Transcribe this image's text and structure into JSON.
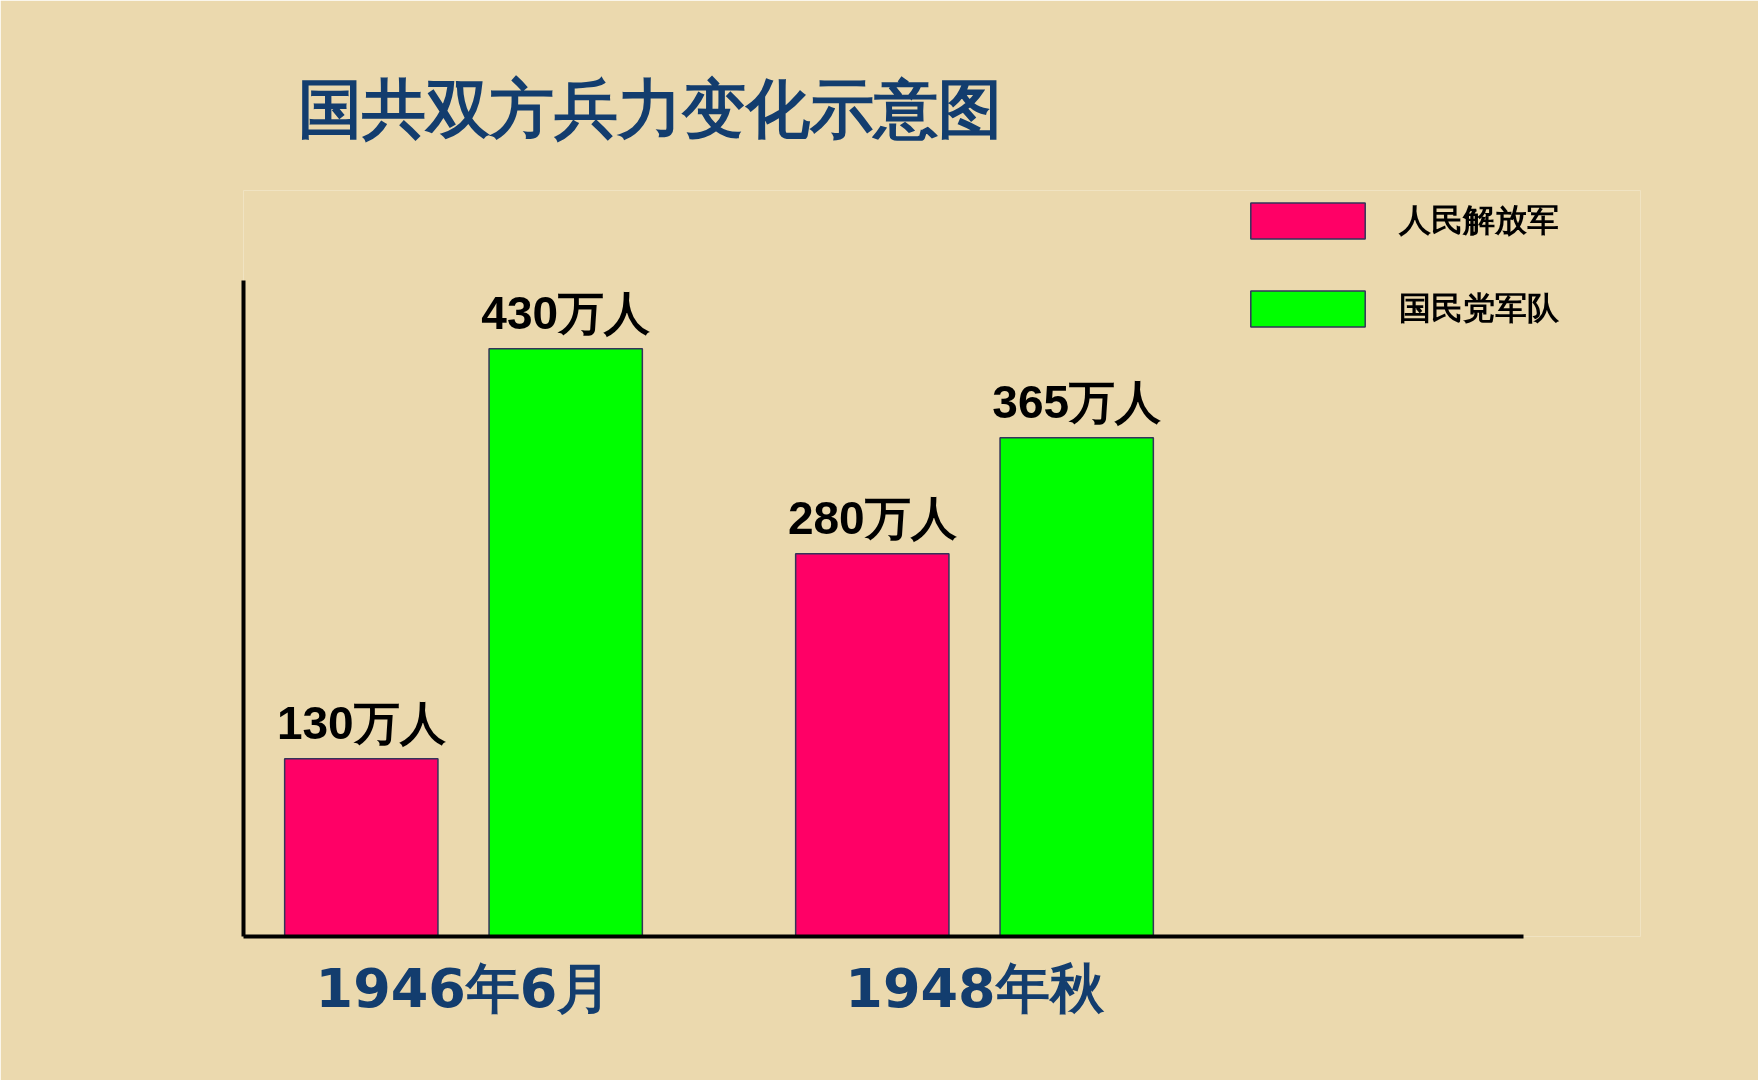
{
  "chart_data": {
    "type": "bar",
    "title": "国共双方兵力变化示意图",
    "categories": [
      "1946年6月",
      "1948年秋"
    ],
    "series": [
      {
        "name": "人民解放军",
        "color": "#ff0066",
        "values": [
          130,
          280
        ],
        "value_labels": [
          "130万人",
          "280万人"
        ]
      },
      {
        "name": "国民党军队",
        "color": "#00ff00",
        "values": [
          430,
          365
        ],
        "value_labels": [
          "430万人",
          "365万人"
        ]
      }
    ],
    "ylim": [
      0,
      480
    ],
    "legend": "top right",
    "tick_labels": "x"
  }
}
